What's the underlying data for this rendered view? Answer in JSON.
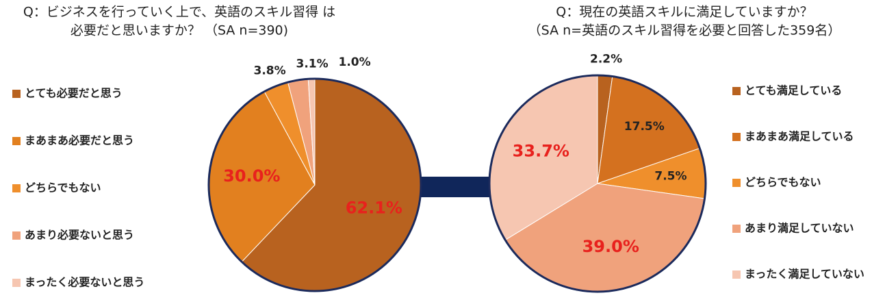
{
  "chart_data": [
    {
      "type": "pie",
      "title": [
        "Q：ビジネスを行っていく上で、英語のスキル習得 は",
        "必要だと思いますか？ （SA n=390)"
      ],
      "categories": [
        "とても必要だと思う",
        "まあまあ必要だと思う",
        "どちらでもない",
        "あまり必要ないと思う",
        "まったく必要ないと思う"
      ],
      "values": [
        62.1,
        30.0,
        3.8,
        3.1,
        1.0
      ],
      "value_labels": [
        "62.1%",
        "30.0%",
        "3.8%",
        "3.1%",
        "1.0%"
      ],
      "colors": [
        "#b8621f",
        "#e2801f",
        "#ef8f2c",
        "#f0a27c",
        "#f6c6b1"
      ],
      "legend": "left"
    },
    {
      "type": "pie",
      "title": [
        "Q：現在の英語スキルに満足していますか？",
        "（SA n=英語のスキル習得を必要と回答した359名）"
      ],
      "categories": [
        "とても満足している",
        "まあまあ満足している",
        "どちらでもない",
        "あまり満足していない",
        "まったく満足していない"
      ],
      "values": [
        2.2,
        17.5,
        7.5,
        39.0,
        33.7
      ],
      "value_labels": [
        "2.2%",
        "17.5%",
        "7.5%",
        "39.0%",
        "33.7%"
      ],
      "colors": [
        "#b8621f",
        "#d4711f",
        "#ef8f2c",
        "#f0a27c",
        "#f6c6b1"
      ],
      "legend": "right"
    }
  ]
}
